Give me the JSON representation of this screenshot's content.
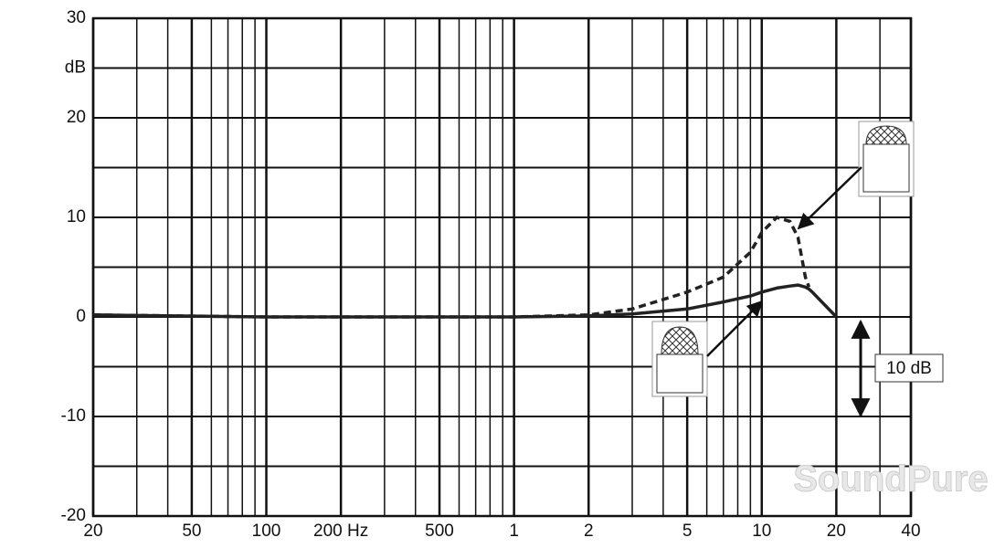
{
  "chart_data": {
    "type": "line",
    "log_x": true,
    "grid": true,
    "xlim": [
      20,
      40000
    ],
    "ylim": [
      -20,
      30
    ],
    "xticks": [
      20,
      50,
      100,
      {
        "value": 200,
        "label": "200 Hz"
      },
      500,
      {
        "value": 1000,
        "label": "1"
      },
      {
        "value": 2000,
        "label": "2"
      },
      {
        "value": 5000,
        "label": "5"
      },
      {
        "value": 10000,
        "label": "10"
      },
      {
        "value": 20000,
        "label": "20"
      },
      {
        "value": 40000,
        "label": "40"
      }
    ],
    "x_minor_grid": [
      30,
      40,
      60,
      70,
      80,
      90,
      300,
      400,
      600,
      700,
      800,
      900,
      3000,
      4000,
      6000,
      7000,
      8000,
      9000,
      30000
    ],
    "yticks": [
      30,
      {
        "value": 25,
        "label": "dB"
      },
      20,
      10,
      0,
      -10,
      -20
    ],
    "y_minor_grid": [
      15,
      5,
      -5,
      -15
    ],
    "x": [
      20,
      100,
      1000,
      2000,
      3000,
      5000,
      7000,
      9000,
      10000,
      11500,
      13000,
      14000,
      15000,
      15500,
      16000,
      20000
    ],
    "series": [
      {
        "color": "#222222",
        "dash": false,
        "values": [
          0.2,
          0,
          0,
          0.1,
          0.3,
          0.8,
          1.5,
          2.1,
          2.5,
          2.9,
          3.1,
          3.2,
          3,
          2.8,
          2.5,
          0
        ]
      },
      {
        "color": "#222222",
        "dash": true,
        "values": [
          0.2,
          0,
          0,
          0.2,
          0.8,
          2.5,
          4,
          6.5,
          8.5,
          10,
          9.6,
          8,
          4,
          3,
          null,
          null
        ]
      }
    ],
    "annotation": "10 dB",
    "watermark": "SoundPure"
  }
}
